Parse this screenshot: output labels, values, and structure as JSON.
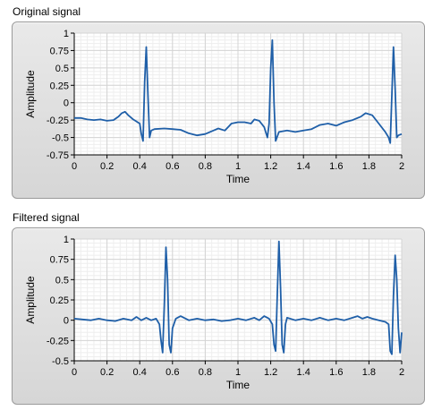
{
  "graphs": [
    {
      "label": "Original signal",
      "chart_data": {
        "type": "line",
        "xlabel": "Time",
        "ylabel": "Amplitude",
        "xlim": [
          0,
          2
        ],
        "ylim": [
          -0.75,
          1
        ],
        "xticks": [
          "0",
          "0.2",
          "0.4",
          "0.6",
          "0.8",
          "1",
          "1.2",
          "1.4",
          "1.6",
          "1.8",
          "2"
        ],
        "yticks": [
          "1",
          "0.75",
          "0.5",
          "0.25",
          "0",
          "-0.25",
          "-0.5",
          "-0.75"
        ],
        "grid": true,
        "color": "#1f5fa8",
        "series": [
          {
            "x": [
              0,
              0.04,
              0.08,
              0.12,
              0.16,
              0.2,
              0.24,
              0.27,
              0.29,
              0.31,
              0.33,
              0.36,
              0.4,
              0.41,
              0.42,
              0.43,
              0.44,
              0.45,
              0.46,
              0.47,
              0.49,
              0.55,
              0.6,
              0.65,
              0.7,
              0.75,
              0.8,
              0.85,
              0.88,
              0.92,
              0.96,
              1.0,
              1.04,
              1.08,
              1.1,
              1.13,
              1.16,
              1.18,
              1.19,
              1.2,
              1.21,
              1.22,
              1.23,
              1.25,
              1.3,
              1.35,
              1.4,
              1.45,
              1.5,
              1.55,
              1.6,
              1.65,
              1.7,
              1.75,
              1.78,
              1.82,
              1.86,
              1.9,
              1.92,
              1.93,
              1.94,
              1.95,
              1.96,
              1.97,
              1.98,
              2.0
            ],
            "y": [
              -0.22,
              -0.22,
              -0.24,
              -0.25,
              -0.24,
              -0.26,
              -0.25,
              -0.2,
              -0.15,
              -0.13,
              -0.18,
              -0.24,
              -0.3,
              -0.45,
              -0.55,
              0.3,
              0.8,
              0.1,
              -0.5,
              -0.4,
              -0.38,
              -0.37,
              -0.38,
              -0.39,
              -0.44,
              -0.47,
              -0.45,
              -0.4,
              -0.37,
              -0.4,
              -0.3,
              -0.28,
              -0.28,
              -0.3,
              -0.24,
              -0.26,
              -0.35,
              -0.5,
              -0.3,
              0.5,
              0.9,
              0.0,
              -0.55,
              -0.42,
              -0.4,
              -0.42,
              -0.4,
              -0.38,
              -0.32,
              -0.3,
              -0.33,
              -0.28,
              -0.25,
              -0.2,
              -0.15,
              -0.18,
              -0.3,
              -0.42,
              -0.5,
              -0.58,
              0.1,
              0.8,
              0.2,
              -0.5,
              -0.47,
              -0.45
            ]
          }
        ]
      }
    },
    {
      "label": "Filtered signal",
      "chart_data": {
        "type": "line",
        "xlabel": "Time",
        "ylabel": "Amplitude",
        "xlim": [
          0,
          2
        ],
        "ylim": [
          -0.5,
          1
        ],
        "xticks": [
          "0",
          "0.2",
          "0.4",
          "0.6",
          "0.8",
          "1",
          "1.2",
          "1.4",
          "1.6",
          "1.8",
          "2"
        ],
        "yticks": [
          "1",
          "0.75",
          "0.5",
          "0.25",
          "0",
          "-0.25",
          "-0.5"
        ],
        "grid": true,
        "color": "#1f5fa8",
        "series": [
          {
            "x": [
              0,
              0.05,
              0.1,
              0.15,
              0.2,
              0.25,
              0.3,
              0.35,
              0.38,
              0.41,
              0.44,
              0.47,
              0.5,
              0.52,
              0.53,
              0.54,
              0.55,
              0.56,
              0.57,
              0.58,
              0.59,
              0.6,
              0.62,
              0.65,
              0.7,
              0.75,
              0.8,
              0.85,
              0.9,
              0.95,
              1.0,
              1.05,
              1.1,
              1.13,
              1.16,
              1.19,
              1.21,
              1.22,
              1.23,
              1.24,
              1.25,
              1.26,
              1.27,
              1.28,
              1.29,
              1.3,
              1.35,
              1.4,
              1.45,
              1.5,
              1.55,
              1.6,
              1.65,
              1.7,
              1.73,
              1.76,
              1.79,
              1.82,
              1.86,
              1.9,
              1.92,
              1.93,
              1.94,
              1.95,
              1.96,
              1.97,
              1.98,
              1.99,
              2.0
            ],
            "y": [
              0.02,
              0.01,
              0.0,
              0.02,
              0.0,
              -0.01,
              0.02,
              0.0,
              0.04,
              0.0,
              0.03,
              0.0,
              0.02,
              -0.05,
              -0.25,
              -0.4,
              0.2,
              0.9,
              0.5,
              -0.3,
              -0.4,
              -0.1,
              0.02,
              0.05,
              0.0,
              0.02,
              0.0,
              0.01,
              -0.01,
              0.0,
              0.02,
              0.0,
              0.03,
              0.0,
              0.05,
              0.02,
              -0.05,
              -0.3,
              -0.38,
              0.3,
              0.97,
              0.4,
              -0.3,
              -0.4,
              -0.05,
              0.03,
              0.0,
              0.02,
              0.0,
              0.03,
              0.0,
              0.02,
              0.0,
              0.03,
              0.05,
              0.02,
              0.04,
              0.02,
              0.0,
              -0.02,
              -0.05,
              -0.38,
              -0.42,
              0.3,
              0.8,
              0.5,
              -0.1,
              -0.4,
              -0.15
            ]
          }
        ]
      }
    }
  ]
}
